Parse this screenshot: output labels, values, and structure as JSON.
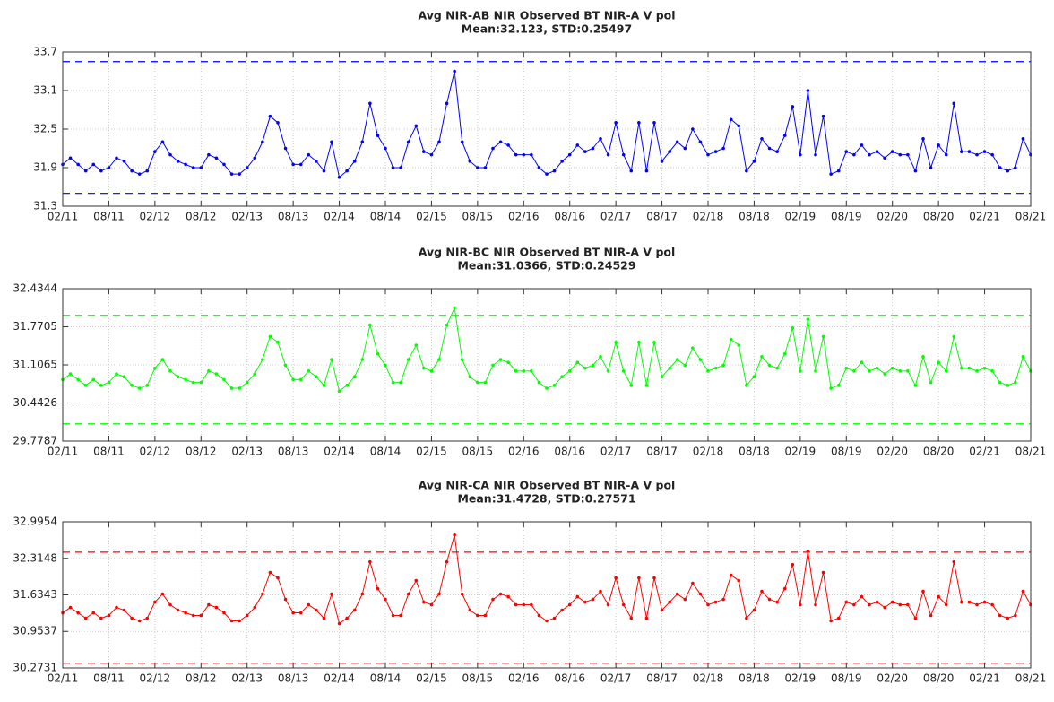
{
  "chart_data": [
    {
      "type": "line",
      "title": "Avg NIR-AB NIR Observed BT NIR-A V pol",
      "subtitle": "Mean:32.123,  STD:0.25497",
      "x": [
        "02/11",
        "03/11",
        "04/11",
        "05/11",
        "06/11",
        "07/11",
        "08/11",
        "09/11",
        "10/11",
        "11/11",
        "12/11",
        "01/12",
        "02/12",
        "03/12",
        "04/12",
        "05/12",
        "06/12",
        "07/12",
        "08/12",
        "09/12",
        "10/12",
        "11/12",
        "12/12",
        "01/13",
        "02/13",
        "03/13",
        "04/13",
        "05/13",
        "06/13",
        "07/13",
        "08/13",
        "09/13",
        "10/13",
        "11/13",
        "12/13",
        "01/14",
        "02/14",
        "03/14",
        "04/14",
        "05/14",
        "06/14",
        "07/14",
        "08/14",
        "09/14",
        "10/14",
        "11/14",
        "12/14",
        "01/15",
        "02/15",
        "03/15",
        "04/15",
        "05/15",
        "06/15",
        "07/15",
        "08/15",
        "09/15",
        "10/15",
        "11/15",
        "12/15",
        "01/16",
        "02/16",
        "03/16",
        "04/16",
        "05/16",
        "06/16",
        "07/16",
        "08/16",
        "09/16",
        "10/16",
        "11/16",
        "12/16",
        "01/17",
        "02/17",
        "03/17",
        "04/17",
        "05/17",
        "06/17",
        "07/17",
        "08/17",
        "09/17",
        "10/17",
        "11/17",
        "12/17",
        "01/18",
        "02/18",
        "03/18",
        "04/18",
        "05/18",
        "06/18",
        "07/18",
        "08/18",
        "09/18",
        "10/18",
        "11/18",
        "12/18",
        "01/19",
        "02/19",
        "03/19",
        "04/19",
        "05/19",
        "06/19",
        "07/19",
        "08/19",
        "09/19",
        "10/19",
        "11/19",
        "12/19",
        "01/20",
        "02/20",
        "03/20",
        "04/20",
        "05/20",
        "06/20",
        "07/20",
        "08/20",
        "09/20",
        "10/20",
        "11/20",
        "12/20",
        "01/21",
        "02/21",
        "03/21",
        "04/21",
        "05/21",
        "06/21",
        "07/21",
        "08/21"
      ],
      "series": [
        {
          "color": "#0000ff",
          "values": [
            31.95,
            32.05,
            31.95,
            31.85,
            31.95,
            31.85,
            31.9,
            32.05,
            32.0,
            31.85,
            31.8,
            31.85,
            32.15,
            32.3,
            32.1,
            32.0,
            31.95,
            31.9,
            31.9,
            32.1,
            32.05,
            31.95,
            31.8,
            31.8,
            31.9,
            32.05,
            32.3,
            32.7,
            32.6,
            32.2,
            31.95,
            31.95,
            32.1,
            32.0,
            31.85,
            32.3,
            31.75,
            31.85,
            32.0,
            32.3,
            32.9,
            32.4,
            32.2,
            31.9,
            31.9,
            32.3,
            32.55,
            32.15,
            32.1,
            32.3,
            32.9,
            33.4,
            32.3,
            32.0,
            31.9,
            31.9,
            32.2,
            32.3,
            32.25,
            32.1,
            32.1,
            32.1,
            31.9,
            31.8,
            31.85,
            32.0,
            32.1,
            32.25,
            32.15,
            32.2,
            32.35,
            32.1,
            32.6,
            32.1,
            31.85,
            32.6,
            31.85,
            32.6,
            32.0,
            32.15,
            32.3,
            32.2,
            32.5,
            32.3,
            32.1,
            32.15,
            32.2,
            32.65,
            32.55,
            31.85,
            32.0,
            32.35,
            32.2,
            32.15,
            32.4,
            32.85,
            32.1,
            33.1,
            32.1,
            32.7,
            31.8,
            31.85,
            32.15,
            32.1,
            32.25,
            32.1,
            32.15,
            32.05,
            32.15,
            32.1,
            32.1,
            31.85,
            32.35,
            31.9,
            32.25,
            32.1,
            32.9,
            32.15,
            32.15,
            32.1,
            32.15,
            32.1,
            31.9,
            31.85,
            31.9,
            32.35,
            32.1
          ]
        }
      ],
      "reference_lines": [
        31.5,
        33.55
      ],
      "xlim": [
        "02/11",
        "08/21"
      ],
      "xticks": [
        "02/11",
        "08/11",
        "02/12",
        "08/12",
        "02/13",
        "08/13",
        "02/14",
        "08/14",
        "02/15",
        "08/15",
        "02/16",
        "08/16",
        "02/17",
        "08/17",
        "02/18",
        "08/18",
        "02/19",
        "08/19",
        "02/20",
        "08/20",
        "02/21",
        "08/21"
      ],
      "ylim": [
        31.3,
        33.7
      ],
      "yticks": [
        31.3,
        31.9,
        32.5,
        33.1,
        33.7
      ],
      "grid": true
    },
    {
      "type": "line",
      "title": "Avg NIR-BC NIR Observed BT NIR-A V pol",
      "subtitle": "Mean:31.0366,  STD:0.24529",
      "x": [
        "02/11",
        "03/11",
        "04/11",
        "05/11",
        "06/11",
        "07/11",
        "08/11",
        "09/11",
        "10/11",
        "11/11",
        "12/11",
        "01/12",
        "02/12",
        "03/12",
        "04/12",
        "05/12",
        "06/12",
        "07/12",
        "08/12",
        "09/12",
        "10/12",
        "11/12",
        "12/12",
        "01/13",
        "02/13",
        "03/13",
        "04/13",
        "05/13",
        "06/13",
        "07/13",
        "08/13",
        "09/13",
        "10/13",
        "11/13",
        "12/13",
        "01/14",
        "02/14",
        "03/14",
        "04/14",
        "05/14",
        "06/14",
        "07/14",
        "08/14",
        "09/14",
        "10/14",
        "11/14",
        "12/14",
        "01/15",
        "02/15",
        "03/15",
        "04/15",
        "05/15",
        "06/15",
        "07/15",
        "08/15",
        "09/15",
        "10/15",
        "11/15",
        "12/15",
        "01/16",
        "02/16",
        "03/16",
        "04/16",
        "05/16",
        "06/16",
        "07/16",
        "08/16",
        "09/16",
        "10/16",
        "11/16",
        "12/16",
        "01/17",
        "02/17",
        "03/17",
        "04/17",
        "05/17",
        "06/17",
        "07/17",
        "08/17",
        "09/17",
        "10/17",
        "11/17",
        "12/17",
        "01/18",
        "02/18",
        "03/18",
        "04/18",
        "05/18",
        "06/18",
        "07/18",
        "08/18",
        "09/18",
        "10/18",
        "11/18",
        "12/18",
        "01/19",
        "02/19",
        "03/19",
        "04/19",
        "05/19",
        "06/19",
        "07/19",
        "08/19",
        "09/19",
        "10/19",
        "11/19",
        "12/19",
        "01/20",
        "02/20",
        "03/20",
        "04/20",
        "05/20",
        "06/20",
        "07/20",
        "08/20",
        "09/20",
        "10/20",
        "11/20",
        "12/20",
        "01/21",
        "02/21",
        "03/21",
        "04/21",
        "05/21",
        "06/21",
        "07/21",
        "08/21"
      ],
      "series": [
        {
          "color": "#00ff00",
          "values": [
            30.85,
            30.95,
            30.85,
            30.75,
            30.85,
            30.75,
            30.8,
            30.95,
            30.9,
            30.75,
            30.7,
            30.75,
            31.05,
            31.2,
            31.0,
            30.9,
            30.85,
            30.8,
            30.8,
            31.0,
            30.95,
            30.85,
            30.7,
            30.7,
            30.8,
            30.95,
            31.2,
            31.6,
            31.5,
            31.1,
            30.85,
            30.85,
            31.0,
            30.9,
            30.75,
            31.2,
            30.65,
            30.75,
            30.9,
            31.2,
            31.8,
            31.3,
            31.1,
            30.8,
            30.8,
            31.2,
            31.45,
            31.05,
            31.0,
            31.2,
            31.8,
            32.1,
            31.2,
            30.9,
            30.8,
            30.8,
            31.1,
            31.2,
            31.15,
            31.0,
            31.0,
            31.0,
            30.8,
            30.7,
            30.75,
            30.9,
            31.0,
            31.15,
            31.05,
            31.1,
            31.25,
            31.0,
            31.5,
            31.0,
            30.75,
            31.5,
            30.75,
            31.5,
            30.9,
            31.05,
            31.2,
            31.1,
            31.4,
            31.2,
            31.0,
            31.05,
            31.1,
            31.55,
            31.45,
            30.75,
            30.9,
            31.25,
            31.1,
            31.05,
            31.3,
            31.75,
            31.0,
            31.9,
            31.0,
            31.6,
            30.7,
            30.75,
            31.05,
            31.0,
            31.15,
            31.0,
            31.05,
            30.95,
            31.05,
            31.0,
            31.0,
            30.75,
            31.25,
            30.8,
            31.15,
            31.0,
            31.6,
            31.05,
            31.05,
            31.0,
            31.05,
            31.0,
            30.8,
            30.75,
            30.8,
            31.25,
            31.0
          ]
        }
      ],
      "reference_lines": [
        30.08,
        31.97
      ],
      "xlim": [
        "02/11",
        "08/21"
      ],
      "xticks": [
        "02/11",
        "08/11",
        "02/12",
        "08/12",
        "02/13",
        "08/13",
        "02/14",
        "08/14",
        "02/15",
        "08/15",
        "02/16",
        "08/16",
        "02/17",
        "08/17",
        "02/18",
        "08/18",
        "02/19",
        "08/19",
        "02/20",
        "08/20",
        "02/21",
        "08/21"
      ],
      "ylim": [
        29.7787,
        32.4344
      ],
      "yticks": [
        29.7787,
        30.4426,
        31.1065,
        31.7705,
        32.4344
      ],
      "grid": true
    },
    {
      "type": "line",
      "title": "Avg NIR-CA NIR Observed BT NIR-A V pol",
      "subtitle": "Mean:31.4728,  STD:0.27571",
      "x": [
        "02/11",
        "03/11",
        "04/11",
        "05/11",
        "06/11",
        "07/11",
        "08/11",
        "09/11",
        "10/11",
        "11/11",
        "12/11",
        "01/12",
        "02/12",
        "03/12",
        "04/12",
        "05/12",
        "06/12",
        "07/12",
        "08/12",
        "09/12",
        "10/12",
        "11/12",
        "12/12",
        "01/13",
        "02/13",
        "03/13",
        "04/13",
        "05/13",
        "06/13",
        "07/13",
        "08/13",
        "09/13",
        "10/13",
        "11/13",
        "12/13",
        "01/14",
        "02/14",
        "03/14",
        "04/14",
        "05/14",
        "06/14",
        "07/14",
        "08/14",
        "09/14",
        "10/14",
        "11/14",
        "12/14",
        "01/15",
        "02/15",
        "03/15",
        "04/15",
        "05/15",
        "06/15",
        "07/15",
        "08/15",
        "09/15",
        "10/15",
        "11/15",
        "12/15",
        "01/16",
        "02/16",
        "03/16",
        "04/16",
        "05/16",
        "06/16",
        "07/16",
        "08/16",
        "09/16",
        "10/16",
        "11/16",
        "12/16",
        "01/17",
        "02/17",
        "03/17",
        "04/17",
        "05/17",
        "06/17",
        "07/17",
        "08/17",
        "09/17",
        "10/17",
        "11/17",
        "12/17",
        "01/18",
        "02/18",
        "03/18",
        "04/18",
        "05/18",
        "06/18",
        "07/18",
        "08/18",
        "09/18",
        "10/18",
        "11/18",
        "12/18",
        "01/19",
        "02/19",
        "03/19",
        "04/19",
        "05/19",
        "06/19",
        "07/19",
        "08/19",
        "09/19",
        "10/19",
        "11/19",
        "12/19",
        "01/20",
        "02/20",
        "03/20",
        "04/20",
        "05/20",
        "06/20",
        "07/20",
        "08/20",
        "09/20",
        "10/20",
        "11/20",
        "12/20",
        "01/21",
        "02/21",
        "03/21",
        "04/21",
        "05/21",
        "06/21",
        "07/21",
        "08/21"
      ],
      "series": [
        {
          "color": "#ff0000",
          "values": [
            31.3,
            31.4,
            31.3,
            31.2,
            31.3,
            31.2,
            31.25,
            31.4,
            31.35,
            31.2,
            31.15,
            31.2,
            31.5,
            31.65,
            31.45,
            31.35,
            31.3,
            31.25,
            31.25,
            31.45,
            31.4,
            31.3,
            31.15,
            31.15,
            31.25,
            31.4,
            31.65,
            32.05,
            31.95,
            31.55,
            31.3,
            31.3,
            31.45,
            31.35,
            31.2,
            31.65,
            31.1,
            31.2,
            31.35,
            31.65,
            32.25,
            31.75,
            31.55,
            31.25,
            31.25,
            31.65,
            31.9,
            31.5,
            31.45,
            31.65,
            32.25,
            32.75,
            31.65,
            31.35,
            31.25,
            31.25,
            31.55,
            31.65,
            31.6,
            31.45,
            31.45,
            31.45,
            31.25,
            31.15,
            31.2,
            31.35,
            31.45,
            31.6,
            31.5,
            31.55,
            31.7,
            31.45,
            31.95,
            31.45,
            31.2,
            31.95,
            31.2,
            31.95,
            31.35,
            31.5,
            31.65,
            31.55,
            31.85,
            31.65,
            31.45,
            31.5,
            31.55,
            32.0,
            31.9,
            31.2,
            31.35,
            31.7,
            31.55,
            31.5,
            31.75,
            32.2,
            31.45,
            32.45,
            31.45,
            32.05,
            31.15,
            31.2,
            31.5,
            31.45,
            31.6,
            31.45,
            31.5,
            31.4,
            31.5,
            31.45,
            31.45,
            31.2,
            31.7,
            31.25,
            31.6,
            31.45,
            32.25,
            31.5,
            31.5,
            31.45,
            31.5,
            31.45,
            31.25,
            31.2,
            31.25,
            31.7,
            31.45
          ]
        }
      ],
      "reference_lines": [
        30.36,
        32.43
      ],
      "xlim": [
        "02/11",
        "08/21"
      ],
      "xticks": [
        "02/11",
        "08/11",
        "02/12",
        "08/12",
        "02/13",
        "08/13",
        "02/14",
        "08/14",
        "02/15",
        "08/15",
        "02/16",
        "08/16",
        "02/17",
        "08/17",
        "02/18",
        "08/18",
        "02/19",
        "08/19",
        "02/20",
        "08/20",
        "02/21",
        "08/21"
      ],
      "ylim": [
        30.2731,
        32.9954
      ],
      "yticks": [
        30.2731,
        30.9537,
        31.6343,
        32.3148,
        32.9954
      ],
      "grid": true
    }
  ]
}
